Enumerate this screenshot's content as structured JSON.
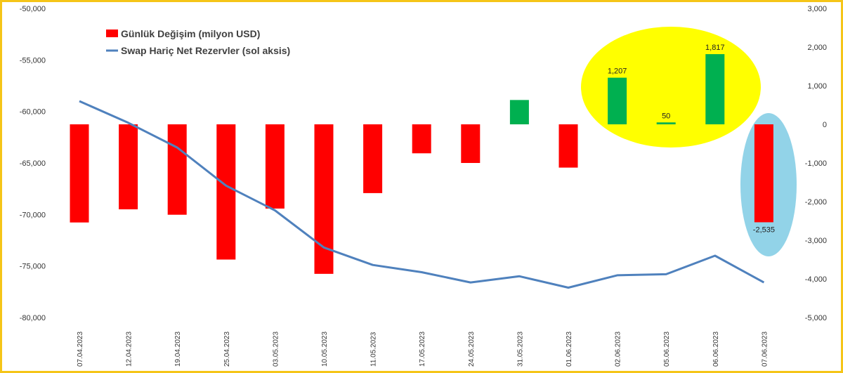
{
  "chart_data": {
    "type": "bar+line",
    "categories": [
      "07.04.2023",
      "12.04.2023",
      "19.04.2023",
      "25.04.2023",
      "03.05.2023",
      "10.05.2023",
      "11.05.2023",
      "17.05.2023",
      "24.05.2023",
      "31.05.2023",
      "01.06.2023",
      "02.06.2023",
      "05.06.2023",
      "06.06.2023",
      "07.06.2023"
    ],
    "series": [
      {
        "name": "Günlük Değişim (milyon USD)",
        "type": "bar",
        "axis": "right",
        "values": [
          -2540,
          -2200,
          -2340,
          -3500,
          -2180,
          -3870,
          -1780,
          -750,
          -1000,
          630,
          -1120,
          1207,
          50,
          1817,
          -2535
        ]
      },
      {
        "name": "Swap Hariç Net Rezervler (sol aksis)",
        "type": "line",
        "axis": "left",
        "values": [
          -59000,
          -61100,
          -63500,
          -67200,
          -69600,
          -73200,
          -74900,
          -75600,
          -76600,
          -76000,
          -77100,
          -75900,
          -75800,
          -74000,
          -76600
        ]
      }
    ],
    "left_axis": {
      "min": -80000,
      "max": -50000,
      "ticks": [
        "-50,000",
        "-55,000",
        "-60,000",
        "-65,000",
        "-70,000",
        "-75,000",
        "-80,000"
      ]
    },
    "right_axis": {
      "min": -5000,
      "max": 3000,
      "ticks": [
        "3,000",
        "2,000",
        "1,000",
        "0",
        "-1,000",
        "-2,000",
        "-3,000",
        "-4,000",
        "-5,000"
      ]
    },
    "data_labels": [
      "1,207",
      "50",
      "1,817",
      "-2,535"
    ],
    "grid": false,
    "legend_position": "top-left"
  },
  "colors": {
    "negative_bar": "#ff0000",
    "positive_bar": "#00b050",
    "line": "#4f81bd",
    "highlight_yellow": "#ffff00",
    "highlight_blue": "#92d3e8",
    "frame": "#f5c518"
  }
}
